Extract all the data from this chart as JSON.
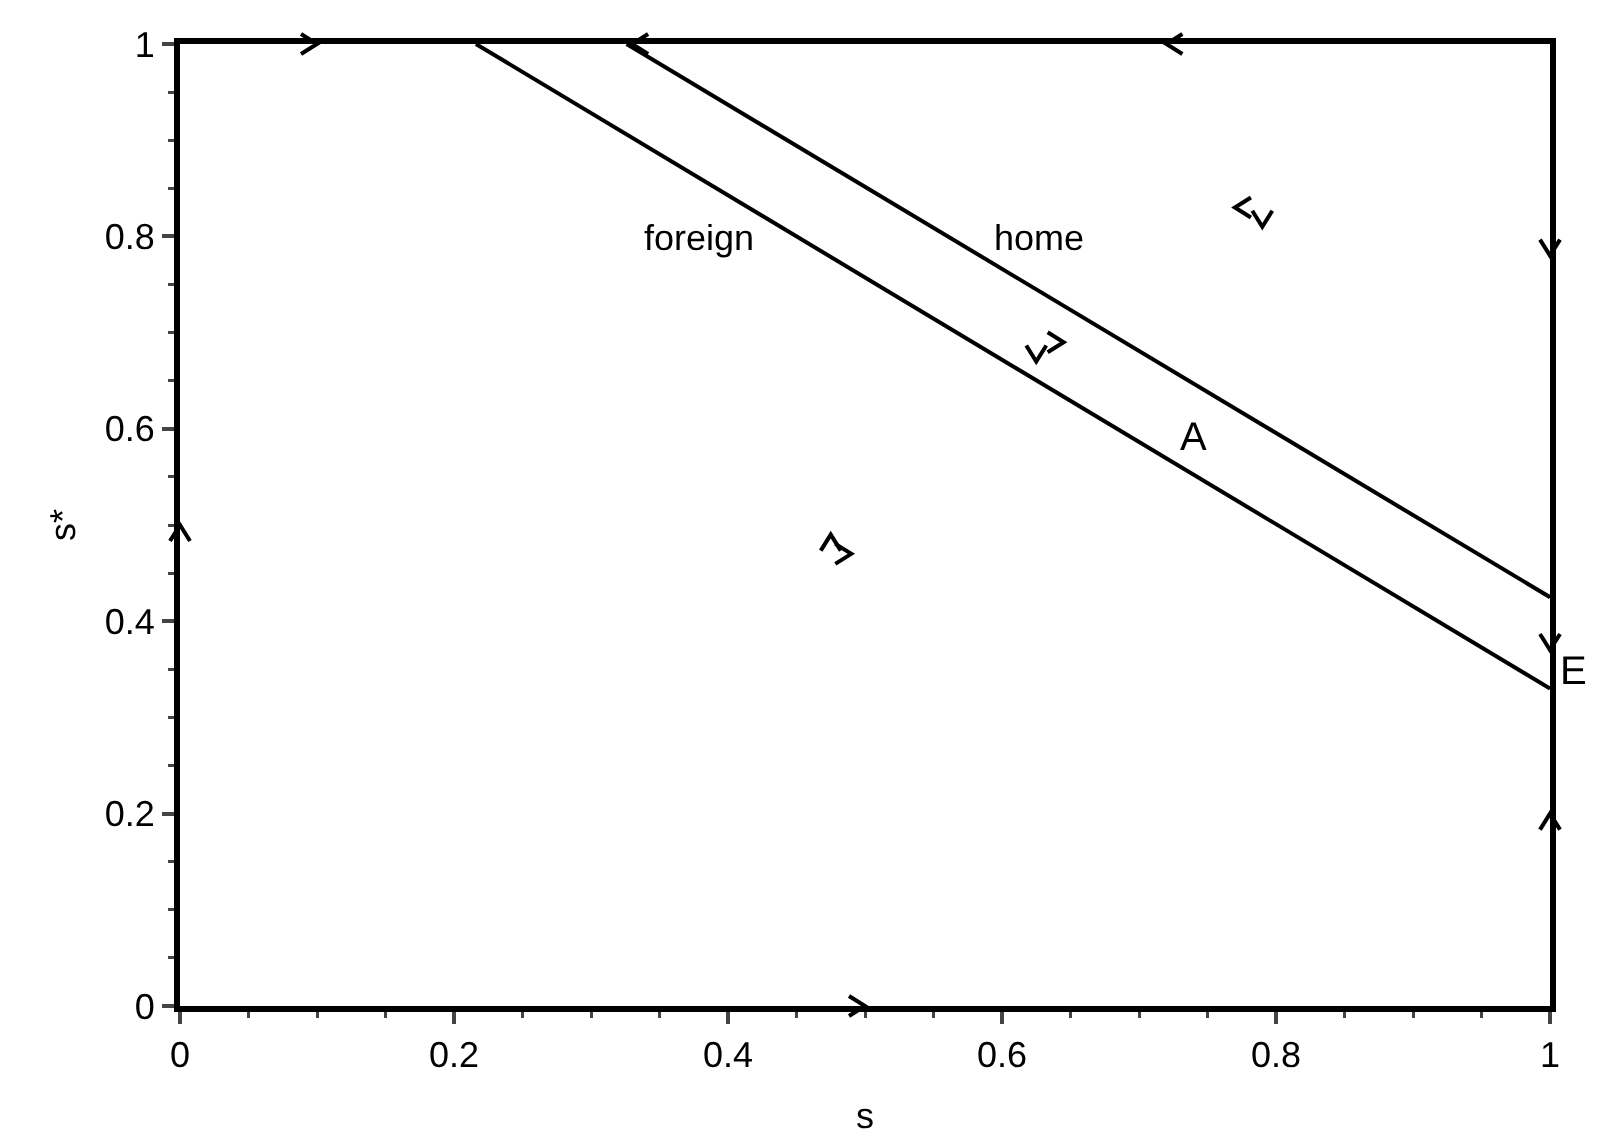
{
  "chart_data": {
    "type": "line",
    "xlabel": "s",
    "ylabel": "s*",
    "series": [
      {
        "name": "foreign",
        "color": "#000000",
        "x": [
          0.216,
          1
        ],
        "values": [
          1,
          0.33
        ]
      },
      {
        "name": "home",
        "color": "#000000",
        "x": [
          0.326,
          1
        ],
        "values": [
          1,
          0.425
        ]
      }
    ],
    "annotations": [
      "A",
      "E"
    ],
    "xlim": [
      0,
      1
    ],
    "ylim": [
      0,
      1
    ],
    "xticks": [
      0,
      0.2,
      0.4,
      0.6,
      0.8,
      1
    ],
    "yticks": [
      0,
      0.2,
      0.4,
      0.6,
      0.8,
      1
    ],
    "grid": false,
    "legend": false,
    "marker": "none",
    "line_style": "solid"
  }
}
